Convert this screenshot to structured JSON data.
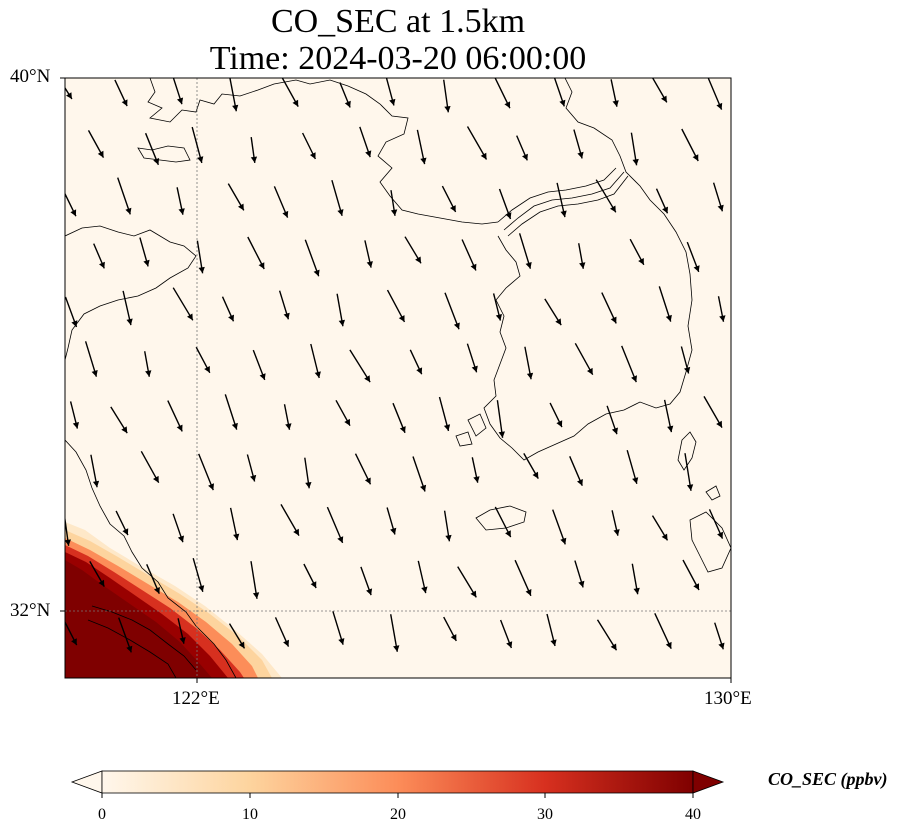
{
  "title": "CO_SEC at 1.5km",
  "subtitle": "Time: 2024-03-20 06:00:00",
  "lat_labels": [
    "40°N",
    "32°N"
  ],
  "lon_labels": [
    "122°E",
    "130°E"
  ],
  "colorbar": {
    "label": "CO_SEC (ppbv)",
    "ticks": [
      "0",
      "10",
      "20",
      "30",
      "40"
    ],
    "range": [
      0,
      40
    ],
    "extend": "both",
    "colormap": [
      "#fff7ec",
      "#fdd49e",
      "#fc8d59",
      "#d7301f",
      "#7f0000"
    ]
  },
  "map": {
    "extent": {
      "lon": [
        120,
        130
      ],
      "lat": [
        31,
        40
      ]
    },
    "gridlines": {
      "lon": 122,
      "lat": 32
    },
    "background_color": "#fff7ec",
    "high_concentration_area": "southwest corner near Shanghai / Yangtze River delta",
    "high_color": "#7f0000",
    "wind_direction": "north-northwesterly (pointing south-southeast)"
  }
}
